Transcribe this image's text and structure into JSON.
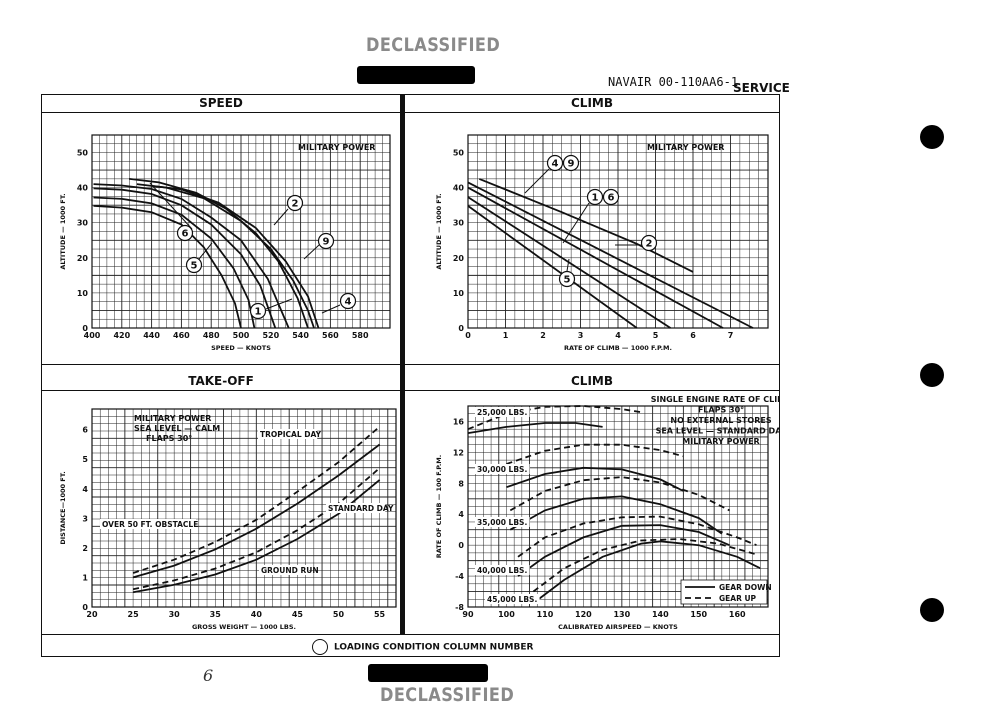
{
  "header": {
    "declassified_top": "DECLASSIFIED",
    "document_number": "NAVAIR 00-110AA6-1",
    "section": "SERVICE"
  },
  "footer": {
    "legend_text": "LOADING CONDITION COLUMN NUMBER",
    "page_number": "6",
    "declassified_bottom": "DECLASSIFIED"
  },
  "colors": {
    "ink": "#111111",
    "grid": "#222222",
    "stamp": "#8a8a8a"
  },
  "chart_data": [
    {
      "id": "speed",
      "type": "line",
      "title": "SPEED",
      "note": [
        "MILITARY POWER"
      ],
      "xlabel": "SPEED — KNOTS",
      "ylabel": "ALTITUDE — 1000 FT.",
      "xlim": [
        400,
        600
      ],
      "ylim": [
        0,
        55
      ],
      "xticks": [
        400,
        420,
        440,
        460,
        480,
        500,
        520,
        540,
        560,
        580
      ],
      "yticks": [
        0,
        10,
        20,
        30,
        40,
        50
      ],
      "series": [
        {
          "name": "6",
          "dash": false,
          "points": [
            [
              401,
              34.8
            ],
            [
              420,
              34.3
            ],
            [
              440,
              33
            ],
            [
              460,
              29.5
            ],
            [
              475,
              23
            ],
            [
              487,
              15
            ],
            [
              496,
              7
            ],
            [
              500,
              0
            ]
          ]
        },
        {
          "name": "5",
          "dash": false,
          "points": [
            [
              401,
              37.2
            ],
            [
              420,
              36.8
            ],
            [
              440,
              35.5
            ],
            [
              460,
              32.3
            ],
            [
              480,
              25.5
            ],
            [
              495,
              17
            ],
            [
              505,
              8
            ],
            [
              509,
              0
            ]
          ]
        },
        {
          "name": "1",
          "dash": false,
          "points": [
            [
              401,
              39.8
            ],
            [
              420,
              39.4
            ],
            [
              440,
              38.2
            ],
            [
              460,
              35
            ],
            [
              480,
              29.5
            ],
            [
              500,
              21
            ],
            [
              513,
              12
            ],
            [
              523,
              0
            ]
          ]
        },
        {
          "name": "6-upper",
          "dash": false,
          "points": [
            [
              401,
              41
            ],
            [
              420,
              40.6
            ],
            [
              440,
              39.6
            ],
            [
              460,
              36.8
            ],
            [
              480,
              31.5
            ],
            [
              500,
              25
            ],
            [
              518,
              14
            ],
            [
              532,
              0
            ]
          ]
        },
        {
          "name": "2",
          "dash": false,
          "points": [
            [
              425,
              42.5
            ],
            [
              445,
              41.5
            ],
            [
              470,
              38.5
            ],
            [
              490,
              34
            ],
            [
              510,
              27
            ],
            [
              525,
              19
            ],
            [
              538,
              8.5
            ],
            [
              545,
              0
            ]
          ]
        },
        {
          "name": "9",
          "dash": false,
          "points": [
            [
              430,
              41
            ],
            [
              450,
              40
            ],
            [
              475,
              37
            ],
            [
              500,
              30.5
            ],
            [
              520,
              22.5
            ],
            [
              535,
              13.5
            ],
            [
              545,
              5
            ],
            [
              549,
              0
            ]
          ]
        },
        {
          "name": "4",
          "dash": false,
          "points": [
            [
              440,
              40.5
            ],
            [
              460,
              39.5
            ],
            [
              485,
              35.7
            ],
            [
              510,
              28.5
            ],
            [
              530,
              19
            ],
            [
              545,
              9
            ],
            [
              552,
              0
            ]
          ]
        }
      ],
      "callouts": [
        "6",
        "5",
        "1",
        "2",
        "9",
        "4"
      ]
    },
    {
      "id": "climb-top",
      "type": "line",
      "title": "CLIMB",
      "note": [
        "MILITARY POWER"
      ],
      "xlabel": "RATE OF CLIMB — 1000 F.P.M.",
      "ylabel": "ALTITUDE — 1000 FT.",
      "xlim": [
        0,
        8
      ],
      "ylim": [
        0,
        55
      ],
      "xticks": [
        0,
        1,
        2,
        3,
        4,
        5,
        6,
        7
      ],
      "yticks": [
        0,
        10,
        20,
        30,
        40,
        50
      ],
      "series": [
        {
          "name": "5",
          "dash": false,
          "points": [
            [
              0,
              34.8
            ],
            [
              4.5,
              0
            ]
          ]
        },
        {
          "name": "1",
          "dash": false,
          "points": [
            [
              0,
              37.3
            ],
            [
              5.4,
              0
            ]
          ]
        },
        {
          "name": "6",
          "dash": false,
          "points": [
            [
              0,
              40
            ],
            [
              6.8,
              0
            ]
          ]
        },
        {
          "name": "2",
          "dash": false,
          "points": [
            [
              0,
              41.5
            ],
            [
              7.6,
              0
            ]
          ]
        },
        {
          "name": "4",
          "dash": false,
          "points": [
            [
              0.3,
              42.5
            ],
            [
              2.5,
              33
            ],
            [
              4.5,
              24
            ],
            [
              6,
              16
            ]
          ]
        }
      ],
      "callouts": [
        "4",
        "9",
        "1",
        "6",
        "2",
        "5"
      ]
    },
    {
      "id": "takeoff",
      "type": "line",
      "title": "TAKE-OFF",
      "note": [
        "MILITARY POWER",
        "SEA LEVEL — CALM",
        "FLAPS 30°"
      ],
      "xlabel": "GROSS WEIGHT — 1000 LBS.",
      "ylabel": "DISTANCE—1000 FT.",
      "xlim": [
        20,
        57
      ],
      "ylim": [
        0,
        6.7
      ],
      "xticks": [
        20,
        25,
        30,
        35,
        40,
        45,
        50,
        55
      ],
      "yticks": [
        0,
        1,
        2,
        3,
        4,
        5,
        6
      ],
      "labels": [
        "TROPICAL DAY",
        "STANDARD DAY",
        "OVER 50 FT. OBSTACLE",
        "GROUND RUN"
      ],
      "series": [
        {
          "name": "obstacle-tropical",
          "dash": true,
          "points": [
            [
              25,
              1.15
            ],
            [
              30,
              1.6
            ],
            [
              35,
              2.2
            ],
            [
              40,
              2.95
            ],
            [
              45,
              3.9
            ],
            [
              50,
              4.9
            ],
            [
              55,
              6.1
            ]
          ]
        },
        {
          "name": "obstacle-standard",
          "dash": false,
          "points": [
            [
              25,
              1.0
            ],
            [
              30,
              1.4
            ],
            [
              35,
              1.95
            ],
            [
              40,
              2.65
            ],
            [
              45,
              3.5
            ],
            [
              50,
              4.45
            ],
            [
              55,
              5.5
            ]
          ]
        },
        {
          "name": "ground-tropical",
          "dash": true,
          "points": [
            [
              25,
              0.6
            ],
            [
              30,
              0.9
            ],
            [
              35,
              1.3
            ],
            [
              40,
              1.85
            ],
            [
              45,
              2.6
            ],
            [
              50,
              3.5
            ],
            [
              55,
              4.7
            ]
          ]
        },
        {
          "name": "ground-standard",
          "dash": false,
          "points": [
            [
              25,
              0.5
            ],
            [
              30,
              0.75
            ],
            [
              35,
              1.1
            ],
            [
              40,
              1.6
            ],
            [
              45,
              2.3
            ],
            [
              50,
              3.15
            ],
            [
              55,
              4.3
            ]
          ]
        }
      ]
    },
    {
      "id": "climb-single-engine",
      "type": "line",
      "title": "CLIMB",
      "note": [
        "SINGLE ENGINE RATE OF CLIMB",
        "FLAPS 30°",
        "NO EXTERNAL STORES",
        "SEA LEVEL — STANDARD DAY",
        "MILITARY POWER"
      ],
      "xlabel": "CALIBRATED AIRSPEED — KNOTS",
      "ylabel": "RATE OF CLIMB — 100 F.P.M.",
      "xlim": [
        90,
        168
      ],
      "ylim": [
        -8,
        18
      ],
      "xticks": [
        90,
        100,
        110,
        120,
        130,
        140,
        150,
        160
      ],
      "yticks": [
        -8,
        -4,
        0,
        4,
        8,
        12,
        16
      ],
      "labels": [
        "25,000 LBS.",
        "30,000 LBS.",
        "35,000 LBS.",
        "40,000 LBS.",
        "45,000 LBS."
      ],
      "legend": [
        "GEAR DOWN",
        "GEAR UP"
      ],
      "series": [
        {
          "name": "25,000 LBS. gear down",
          "dash": false,
          "points": [
            [
              90,
              14.5
            ],
            [
              100,
              15.3
            ],
            [
              110,
              15.8
            ],
            [
              118,
              15.8
            ],
            [
              125,
              15.3
            ]
          ]
        },
        {
          "name": "25,000 LBS. gear up",
          "dash": true,
          "points": [
            [
              90,
              15
            ],
            [
              100,
              17
            ],
            [
              110,
              17.9
            ],
            [
              120,
              18
            ],
            [
              130,
              17.6
            ],
            [
              135,
              17.2
            ]
          ]
        },
        {
          "name": "30,000 LBS. gear down",
          "dash": false,
          "points": [
            [
              100,
              7.5
            ],
            [
              110,
              9.2
            ],
            [
              120,
              10
            ],
            [
              130,
              9.8
            ],
            [
              140,
              8.5
            ],
            [
              146,
              7
            ]
          ]
        },
        {
          "name": "30,000 LBS. gear up",
          "dash": true,
          "points": [
            [
              100,
              10.5
            ],
            [
              110,
              12.2
            ],
            [
              120,
              13
            ],
            [
              130,
              13
            ],
            [
              140,
              12.3
            ],
            [
              146,
              11.5
            ]
          ]
        },
        {
          "name": "35,000 LBS. gear down",
          "dash": false,
          "points": [
            [
              101,
              2
            ],
            [
              110,
              4.5
            ],
            [
              120,
              6
            ],
            [
              130,
              6.3
            ],
            [
              140,
              5.3
            ],
            [
              150,
              3.5
            ],
            [
              156,
              1.5
            ]
          ]
        },
        {
          "name": "35,000 LBS. gear up",
          "dash": true,
          "points": [
            [
              101,
              4.5
            ],
            [
              110,
              7
            ],
            [
              120,
              8.4
            ],
            [
              130,
              8.8
            ],
            [
              140,
              8.1
            ],
            [
              150,
              6.5
            ],
            [
              158,
              4.5
            ]
          ]
        },
        {
          "name": "40,000 LBS. gear down",
          "dash": false,
          "points": [
            [
              103,
              -4
            ],
            [
              110,
              -1.5
            ],
            [
              120,
              1
            ],
            [
              130,
              2.5
            ],
            [
              140,
              2.6
            ],
            [
              150,
              1.7
            ],
            [
              158,
              0
            ]
          ]
        },
        {
          "name": "40,000 LBS. gear up",
          "dash": true,
          "points": [
            [
              103,
              -1.5
            ],
            [
              110,
              1
            ],
            [
              120,
              2.8
            ],
            [
              130,
              3.6
            ],
            [
              140,
              3.7
            ],
            [
              150,
              2.7
            ],
            [
              160,
              1
            ],
            [
              165,
              0
            ]
          ]
        },
        {
          "name": "45,000 LBS. gear down",
          "dash": false,
          "points": [
            [
              107,
              -7.5
            ],
            [
              115,
              -4.5
            ],
            [
              125,
              -1.5
            ],
            [
              135,
              0.2
            ],
            [
              140,
              0.5
            ],
            [
              150,
              0
            ],
            [
              160,
              -1.5
            ],
            [
              166,
              -3
            ]
          ]
        },
        {
          "name": "45,000 LBS. gear up",
          "dash": true,
          "points": [
            [
              107,
              -6
            ],
            [
              115,
              -3
            ],
            [
              125,
              -0.6
            ],
            [
              135,
              0.6
            ],
            [
              145,
              0.8
            ],
            [
              155,
              0.2
            ],
            [
              165,
              -1.2
            ]
          ]
        }
      ]
    }
  ]
}
